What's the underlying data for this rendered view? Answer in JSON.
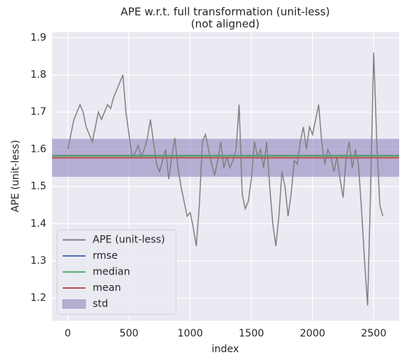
{
  "chart_data": {
    "type": "line",
    "title": "APE w.r.t. full transformation (unit-less)",
    "subtitle": "(not aligned)",
    "x_label": "index",
    "y_label": "APE (unit-less)",
    "x": [
      0,
      25,
      50,
      75,
      100,
      125,
      150,
      175,
      200,
      225,
      250,
      275,
      300,
      325,
      350,
      375,
      400,
      425,
      450,
      475,
      500,
      525,
      550,
      575,
      600,
      625,
      650,
      675,
      700,
      725,
      750,
      775,
      800,
      825,
      850,
      875,
      900,
      925,
      950,
      975,
      1000,
      1025,
      1050,
      1075,
      1100,
      1125,
      1150,
      1175,
      1200,
      1225,
      1250,
      1275,
      1300,
      1325,
      1350,
      1375,
      1400,
      1425,
      1450,
      1475,
      1500,
      1525,
      1550,
      1575,
      1600,
      1625,
      1650,
      1675,
      1700,
      1725,
      1750,
      1775,
      1800,
      1825,
      1850,
      1875,
      1900,
      1925,
      1950,
      1975,
      2000,
      2025,
      2050,
      2075,
      2100,
      2125,
      2150,
      2175,
      2200,
      2225,
      2250,
      2275,
      2300,
      2325,
      2350,
      2375,
      2400,
      2425,
      2450,
      2475,
      2500,
      2525,
      2550,
      2575
    ],
    "series": [
      {
        "name": "APE (unit-less)",
        "color": "#808080",
        "values": [
          1.6,
          1.64,
          1.68,
          1.7,
          1.72,
          1.7,
          1.66,
          1.64,
          1.62,
          1.66,
          1.7,
          1.68,
          1.7,
          1.72,
          1.71,
          1.74,
          1.76,
          1.78,
          1.8,
          1.7,
          1.64,
          1.58,
          1.59,
          1.61,
          1.58,
          1.6,
          1.63,
          1.68,
          1.62,
          1.56,
          1.54,
          1.57,
          1.6,
          1.52,
          1.58,
          1.63,
          1.55,
          1.5,
          1.46,
          1.42,
          1.43,
          1.39,
          1.34,
          1.45,
          1.62,
          1.64,
          1.6,
          1.56,
          1.53,
          1.57,
          1.62,
          1.55,
          1.58,
          1.55,
          1.57,
          1.6,
          1.72,
          1.48,
          1.44,
          1.46,
          1.52,
          1.62,
          1.58,
          1.6,
          1.55,
          1.62,
          1.5,
          1.4,
          1.34,
          1.42,
          1.54,
          1.5,
          1.42,
          1.48,
          1.57,
          1.56,
          1.62,
          1.66,
          1.6,
          1.66,
          1.64,
          1.68,
          1.72,
          1.62,
          1.56,
          1.6,
          1.58,
          1.54,
          1.58,
          1.52,
          1.47,
          1.58,
          1.62,
          1.55,
          1.6,
          1.56,
          1.44,
          1.3,
          1.18,
          1.5,
          1.86,
          1.62,
          1.45,
          1.42
        ]
      }
    ],
    "hlines": [
      {
        "name": "rmse",
        "color": "#4c72b0",
        "value": 1.583
      },
      {
        "name": "median",
        "color": "#55a868",
        "value": 1.582
      },
      {
        "name": "mean",
        "color": "#c44e52",
        "value": 1.577
      }
    ],
    "band": {
      "name": "std",
      "color": "#8172b3",
      "value": 0.051
    },
    "xlim": [
      -129,
      2708
    ],
    "ylim": [
      1.139,
      1.915
    ],
    "xticks": [
      0,
      500,
      1000,
      1500,
      2000,
      2500
    ],
    "yticks": [
      1.2,
      1.3,
      1.4,
      1.5,
      1.6,
      1.7,
      1.8,
      1.9
    ],
    "grid": true,
    "legend": "lower left"
  }
}
